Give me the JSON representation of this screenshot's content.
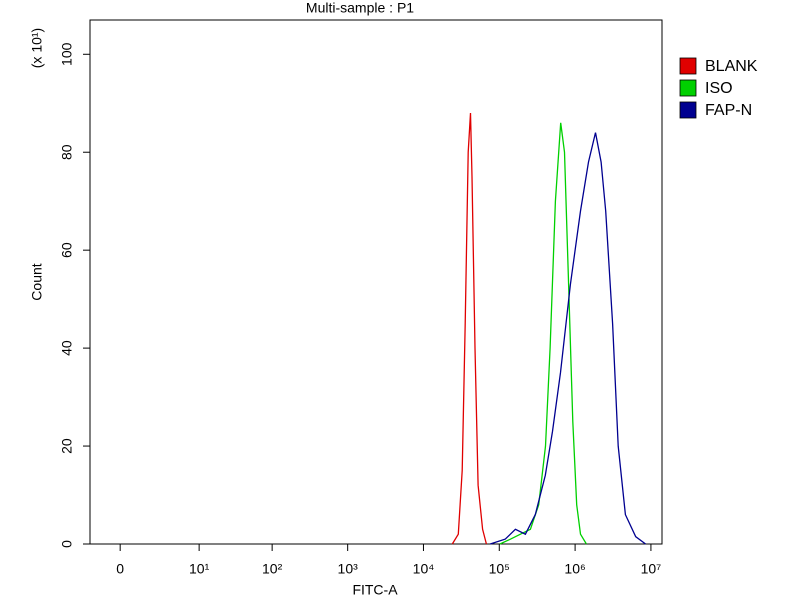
{
  "chart_data": {
    "type": "line",
    "title": "Multi-sample : P1",
    "x_label": "FITC-A",
    "y_label": "Count",
    "y_multiplier": "(x 10¹)",
    "xscale": "symlog",
    "xlim": [
      -1.5,
      14000000
    ],
    "ylim": [
      0,
      107
    ],
    "xticks": [
      0,
      {
        "value": 10,
        "label": "10¹"
      },
      {
        "value": 100,
        "label": "10²"
      },
      {
        "value": 1000,
        "label": "10³"
      },
      {
        "value": 10000,
        "label": "10⁴"
      },
      {
        "value": 100000,
        "label": "10⁵"
      },
      {
        "value": 1000000,
        "label": "10⁶"
      },
      {
        "value": 10000000,
        "label": "10⁷"
      }
    ],
    "yticks": [
      0,
      20,
      40,
      60,
      80,
      100
    ],
    "legend": "right",
    "series": [
      {
        "name": "BLANK",
        "color": "#e00000",
        "x": [
          24000,
          28800,
          32400,
          35500,
          38900,
          41700,
          43700,
          47900,
          52500,
          60300,
          67600
        ],
        "values": [
          0,
          2,
          15,
          45,
          80,
          88,
          75,
          40,
          12,
          3,
          0
        ]
      },
      {
        "name": "ISO",
        "color": "#00d000",
        "x": [
          102000,
          141000,
          190000,
          257000,
          331000,
          407000,
          468000,
          550000,
          646000,
          724000,
          813000,
          933000,
          1050000,
          1180000,
          1410000
        ],
        "values": [
          0,
          1,
          2,
          3,
          8,
          20,
          40,
          70,
          86,
          80,
          55,
          25,
          8,
          2,
          0
        ]
      },
      {
        "name": "FAP-N",
        "color": "#000090",
        "x": [
          75900,
          120000,
          163000,
          221000,
          299000,
          405000,
          503000,
          641000,
          868000,
          1180000,
          1500000,
          1860000,
          2200000,
          2530000,
          3120000,
          3700000,
          4600000,
          6300000,
          8500000
        ],
        "values": [
          0,
          1,
          3,
          2,
          6,
          14,
          23,
          35,
          53,
          68,
          78,
          84,
          78,
          68,
          45,
          20,
          6,
          1.5,
          0
        ]
      }
    ]
  }
}
